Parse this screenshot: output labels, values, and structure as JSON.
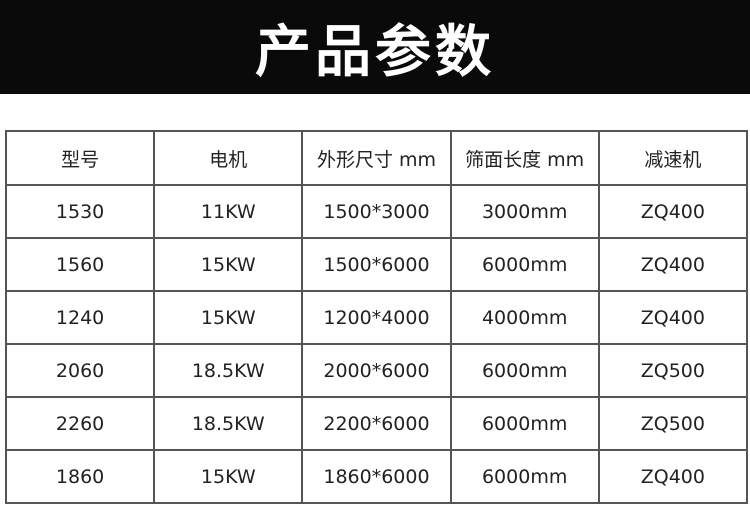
{
  "title": "产品参数",
  "table": {
    "headers": [
      "型号",
      "电机",
      "外形尺寸 mm",
      "筛面长度 mm",
      "减速机"
    ],
    "rows": [
      [
        "1530",
        "11KW",
        "1500*3000",
        "3000mm",
        "ZQ400"
      ],
      [
        "1560",
        "15KW",
        "1500*6000",
        "6000mm",
        "ZQ400"
      ],
      [
        "1240",
        "15KW",
        "1200*4000",
        "4000mm",
        "ZQ400"
      ],
      [
        "2060",
        "18.5KW",
        "2000*6000",
        "6000mm",
        "ZQ500"
      ],
      [
        "2260",
        "18.5KW",
        "2200*6000",
        "6000mm",
        "ZQ500"
      ],
      [
        "1860",
        "15KW",
        "1860*6000",
        "6000mm",
        "ZQ400"
      ]
    ]
  }
}
